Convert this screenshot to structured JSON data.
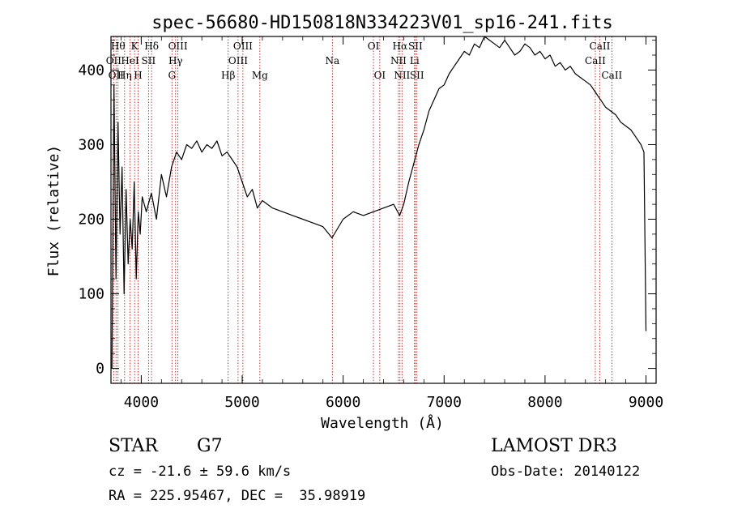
{
  "chart_data": {
    "type": "line",
    "title": "spec-56680-HD150818N334223V01_sp16-241.fits",
    "xlabel": "Wavelength (Å)",
    "ylabel": "Flux (relative)",
    "xlim": [
      3700,
      9100
    ],
    "ylim": [
      -20,
      445
    ],
    "xticks": [
      4000,
      5000,
      6000,
      7000,
      8000,
      9000
    ],
    "xtick_labels": [
      "4000",
      "5000",
      "6000",
      "7000",
      "8000",
      "9000"
    ],
    "yticks": [
      0,
      100,
      200,
      300,
      400
    ],
    "ytick_labels": [
      "0",
      "100",
      "200",
      "300",
      "400"
    ],
    "grid": false,
    "series": [
      {
        "name": "flux",
        "color": "#000000",
        "x": [
          3710,
          3730,
          3750,
          3770,
          3790,
          3810,
          3830,
          3850,
          3870,
          3890,
          3910,
          3930,
          3950,
          3970,
          3990,
          4010,
          4050,
          4100,
          4150,
          4200,
          4250,
          4300,
          4350,
          4400,
          4450,
          4500,
          4550,
          4600,
          4650,
          4700,
          4750,
          4800,
          4850,
          4900,
          4950,
          5000,
          5050,
          5100,
          5150,
          5200,
          5300,
          5400,
          5500,
          5600,
          5700,
          5800,
          5890,
          6000,
          6100,
          6200,
          6300,
          6400,
          6500,
          6560,
          6600,
          6650,
          6700,
          6750,
          6800,
          6850,
          6900,
          6950,
          7000,
          7050,
          7100,
          7150,
          7200,
          7250,
          7300,
          7350,
          7400,
          7450,
          7500,
          7550,
          7600,
          7650,
          7700,
          7750,
          7800,
          7850,
          7900,
          7950,
          8000,
          8050,
          8100,
          8150,
          8200,
          8250,
          8300,
          8350,
          8400,
          8450,
          8500,
          8550,
          8600,
          8650,
          8700,
          8750,
          8800,
          8850,
          8900,
          8950,
          8980,
          9000
        ],
        "y": [
          0,
          380,
          120,
          330,
          180,
          270,
          100,
          240,
          140,
          200,
          160,
          250,
          120,
          210,
          180,
          230,
          210,
          235,
          200,
          260,
          230,
          270,
          290,
          280,
          300,
          295,
          305,
          290,
          300,
          295,
          305,
          285,
          290,
          280,
          270,
          250,
          230,
          240,
          215,
          225,
          215,
          210,
          205,
          200,
          195,
          190,
          175,
          200,
          210,
          205,
          210,
          215,
          220,
          205,
          220,
          250,
          275,
          300,
          320,
          345,
          360,
          375,
          380,
          395,
          405,
          415,
          425,
          420,
          435,
          430,
          445,
          440,
          435,
          430,
          440,
          430,
          420,
          425,
          435,
          430,
          420,
          425,
          415,
          420,
          405,
          410,
          400,
          405,
          395,
          390,
          385,
          380,
          370,
          360,
          350,
          345,
          340,
          330,
          325,
          320,
          310,
          300,
          290,
          50
        ]
      }
    ],
    "line_markers": [
      {
        "wavelength": 3727,
        "label": "OII",
        "row": 2
      },
      {
        "wavelength": 3750,
        "label": "OII",
        "row": 3
      },
      {
        "wavelength": 3770,
        "label": "Hθ",
        "row": 1
      },
      {
        "wavelength": 3835,
        "label": "Hη",
        "row": 3
      },
      {
        "wavelength": 3889,
        "label": "HeI",
        "row": 2
      },
      {
        "wavelength": 3934,
        "label": "K",
        "row": 1
      },
      {
        "wavelength": 3969,
        "label": "H",
        "row": 3
      },
      {
        "wavelength": 4072,
        "label": "SII",
        "row": 2
      },
      {
        "wavelength": 4102,
        "label": "Hδ",
        "row": 1
      },
      {
        "wavelength": 4304,
        "label": "G",
        "row": 3
      },
      {
        "wavelength": 4340,
        "label": "Hγ",
        "row": 2
      },
      {
        "wavelength": 4363,
        "label": "OIII",
        "row": 1
      },
      {
        "wavelength": 4861,
        "label": "Hβ",
        "row": 3
      },
      {
        "wavelength": 4959,
        "label": "OIII",
        "row": 2
      },
      {
        "wavelength": 5007,
        "label": "OIII",
        "row": 1
      },
      {
        "wavelength": 5175,
        "label": "Mg",
        "row": 3
      },
      {
        "wavelength": 5893,
        "label": "Na",
        "row": 2
      },
      {
        "wavelength": 6300,
        "label": "OI",
        "row": 1
      },
      {
        "wavelength": 6363,
        "label": "OI",
        "row": 3
      },
      {
        "wavelength": 6548,
        "label": "NII",
        "row": 2
      },
      {
        "wavelength": 6563,
        "label": "Hα",
        "row": 1
      },
      {
        "wavelength": 6583,
        "label": "NII",
        "row": 3
      },
      {
        "wavelength": 6707,
        "label": "Li",
        "row": 2
      },
      {
        "wavelength": 6716,
        "label": "SII",
        "row": 1
      },
      {
        "wavelength": 6731,
        "label": "SII",
        "row": 3
      },
      {
        "wavelength": 8498,
        "label": "CaII",
        "row": 2
      },
      {
        "wavelength": 8542,
        "label": "CaII",
        "row": 1
      },
      {
        "wavelength": 8662,
        "label": "CaII",
        "row": 3
      }
    ]
  },
  "info": {
    "object_class": "STAR",
    "subclass": "G7",
    "cz": "cz = -21.6 ± 59.6 km/s",
    "coords": "RA = 225.95467, DEC =  35.98919",
    "survey": "LAMOST DR3",
    "obs_date": "Obs-Date: 20140122"
  },
  "colors": {
    "spectrum": "#000000",
    "marker": "#c00000",
    "axis": "#000000"
  }
}
